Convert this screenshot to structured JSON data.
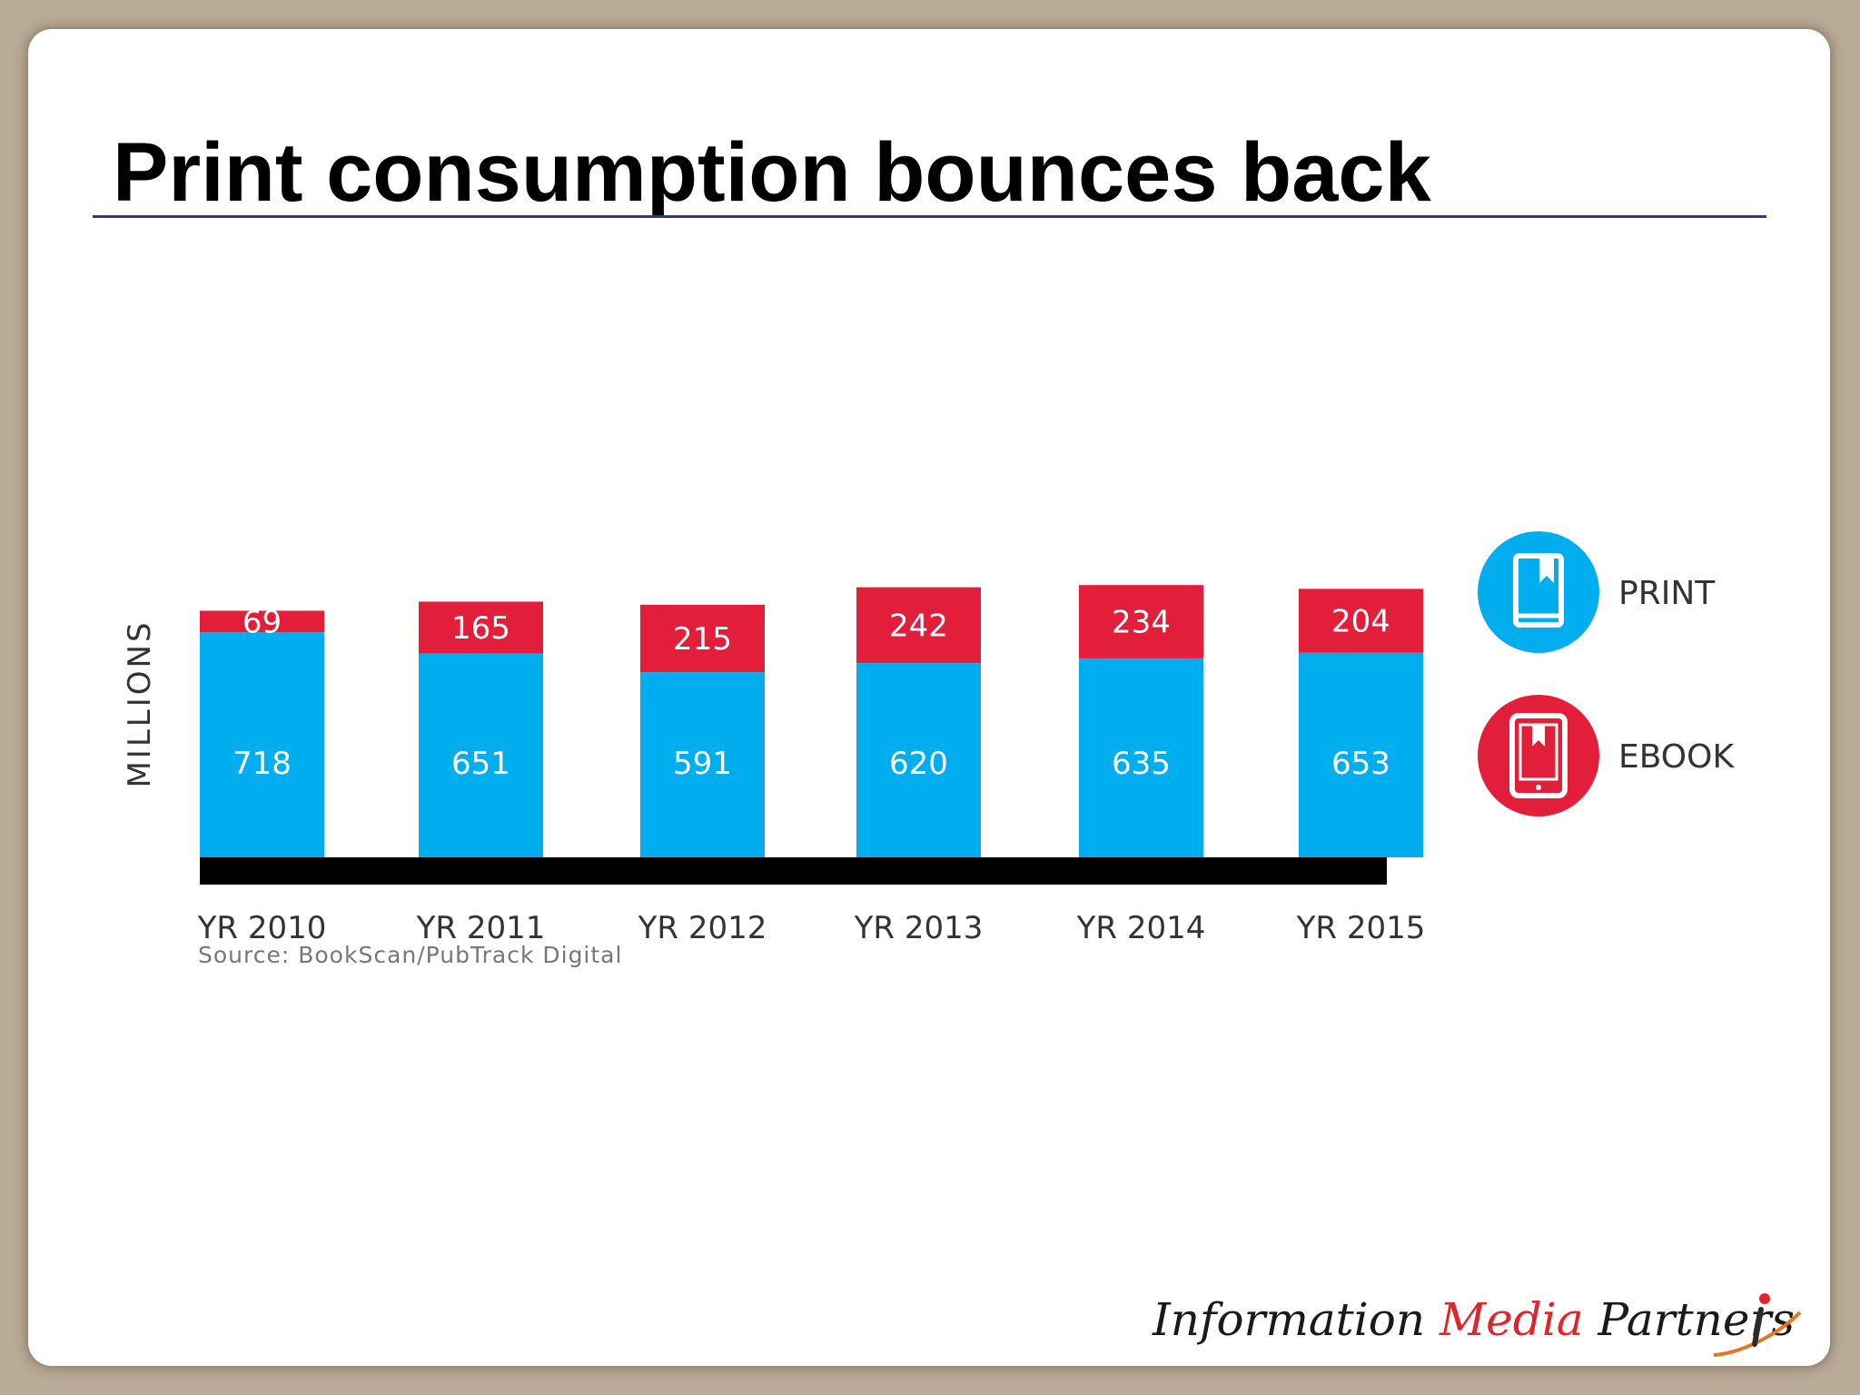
{
  "slide": {
    "title": "Print consumption bounces back"
  },
  "chart_data": {
    "type": "bar",
    "stacked": true,
    "ylabel": "MILLIONS",
    "categories": [
      "YR 2010",
      "YR 2011",
      "YR 2012",
      "YR 2013",
      "YR 2014",
      "YR 2015"
    ],
    "series": [
      {
        "name": "PRINT",
        "color": "#00aeef",
        "values": [
          718,
          651,
          591,
          620,
          635,
          653
        ]
      },
      {
        "name": "EBOOK",
        "color": "#e31e3b",
        "values": [
          69,
          165,
          215,
          242,
          234,
          204
        ]
      }
    ],
    "legend": [
      {
        "label": "PRINT",
        "color": "#00aeef",
        "icon": "book-icon"
      },
      {
        "label": "EBOOK",
        "color": "#e31e3b",
        "icon": "tablet-icon"
      }
    ],
    "legend_position": "right",
    "source": "Source: BookScan/PubTrack Digital"
  },
  "branding": {
    "company_start": "Information ",
    "company_accent": "Media",
    "company_end": " Partners"
  }
}
